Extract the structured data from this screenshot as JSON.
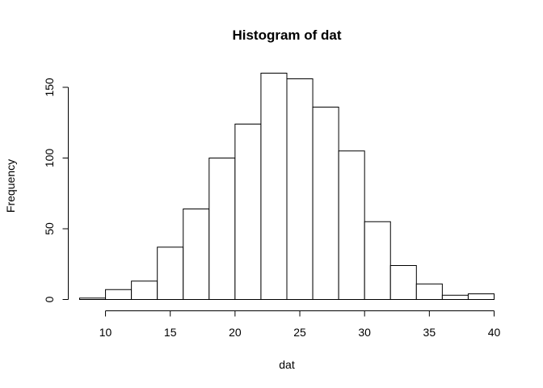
{
  "chart_data": {
    "type": "bar",
    "title": "Histogram of dat",
    "xlabel": "dat",
    "ylabel": "Frequency",
    "bin_edges": [
      8,
      10,
      12,
      14,
      16,
      18,
      20,
      22,
      24,
      26,
      28,
      30,
      32,
      34,
      36,
      38,
      40
    ],
    "values": [
      1,
      7,
      13,
      37,
      64,
      100,
      124,
      160,
      156,
      136,
      105,
      55,
      24,
      11,
      3,
      4
    ],
    "xlim": [
      8,
      40
    ],
    "ylim": [
      0,
      160
    ],
    "x_ticks": [
      10,
      15,
      20,
      25,
      30,
      35,
      40
    ],
    "y_ticks": [
      0,
      50,
      100,
      150
    ],
    "grid": false,
    "colors": {
      "bar_fill": "#ffffff",
      "bar_stroke": "#000000"
    }
  }
}
